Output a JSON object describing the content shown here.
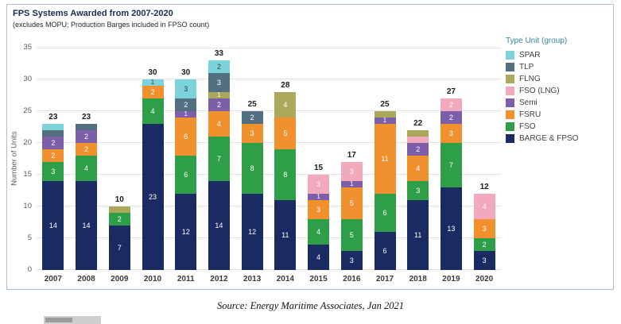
{
  "page": {
    "source_note": "Source: Energy Maritime Associates, Jan 2021"
  },
  "chart_data": {
    "type": "bar",
    "stacked": true,
    "title": "FPS Systems Awarded from 2007-2020",
    "subtitle": "(excludes MOPU; Production Barges included in FPSO count)",
    "ylabel": "Number of Units",
    "ylim": [
      0,
      35
    ],
    "yticks": [
      0,
      5,
      10,
      15,
      20,
      25,
      30,
      35
    ],
    "grid": "horizontal",
    "categories": [
      "2007",
      "2008",
      "2009",
      "2010",
      "2011",
      "2012",
      "2013",
      "2014",
      "2015",
      "2016",
      "2017",
      "2018",
      "2019",
      "2020"
    ],
    "totals": [
      23,
      23,
      10,
      30,
      30,
      33,
      25,
      28,
      15,
      17,
      25,
      22,
      27,
      12
    ],
    "series": [
      {
        "name": "BARGE & FPSO",
        "color": "#1a2a62",
        "text": "#ffffff",
        "values": [
          14,
          14,
          7,
          23,
          12,
          14,
          12,
          11,
          4,
          3,
          6,
          11,
          13,
          3
        ]
      },
      {
        "name": "FSO",
        "color": "#2f9e49",
        "text": "#ffffff",
        "values": [
          3,
          4,
          2,
          4,
          6,
          7,
          8,
          8,
          4,
          5,
          6,
          3,
          7,
          2
        ]
      },
      {
        "name": "FSRU",
        "color": "#f0912d",
        "text": "#ffffff",
        "values": [
          2,
          2,
          0,
          2,
          6,
          4,
          3,
          5,
          3,
          5,
          11,
          4,
          3,
          3
        ]
      },
      {
        "name": "Semi",
        "color": "#7d5ea8",
        "text": "#ffffff",
        "values": [
          2,
          2,
          0,
          0,
          1,
          2,
          0,
          0,
          1,
          1,
          1,
          2,
          2,
          0
        ]
      },
      {
        "name": "FSO (LNG)",
        "color": "#f2a9bc",
        "text": "#ffffff",
        "values": [
          0,
          0,
          0,
          0,
          0,
          0,
          0,
          0,
          3,
          3,
          0,
          1,
          2,
          4
        ]
      },
      {
        "name": "FLNG",
        "color": "#aba75b",
        "text": "#ffffff",
        "values": [
          0,
          0,
          1,
          0,
          0,
          1,
          0,
          4,
          0,
          0,
          1,
          1,
          0,
          0
        ]
      },
      {
        "name": "TLP",
        "color": "#52707f",
        "text": "#ffffff",
        "values": [
          1,
          1,
          0,
          0,
          2,
          3,
          2,
          0,
          0,
          0,
          0,
          0,
          0,
          0
        ]
      },
      {
        "name": "SPAR",
        "color": "#7dd3db",
        "text": "#3a3a3a",
        "values": [
          1,
          0,
          0,
          1,
          3,
          2,
          0,
          0,
          0,
          0,
          0,
          0,
          0,
          0
        ]
      }
    ],
    "one_labels": [
      "2010|SPAR",
      "2011|Semi",
      "2012|FLNG",
      "2015|Semi",
      "2016|Semi",
      "2017|Semi"
    ],
    "legend": {
      "title": "Type Unit (group)",
      "position": "right",
      "entries": [
        "SPAR",
        "TLP",
        "FLNG",
        "FSO (LNG)",
        "Semi",
        "FSRU",
        "FSO",
        "BARGE & FPSO"
      ]
    }
  }
}
